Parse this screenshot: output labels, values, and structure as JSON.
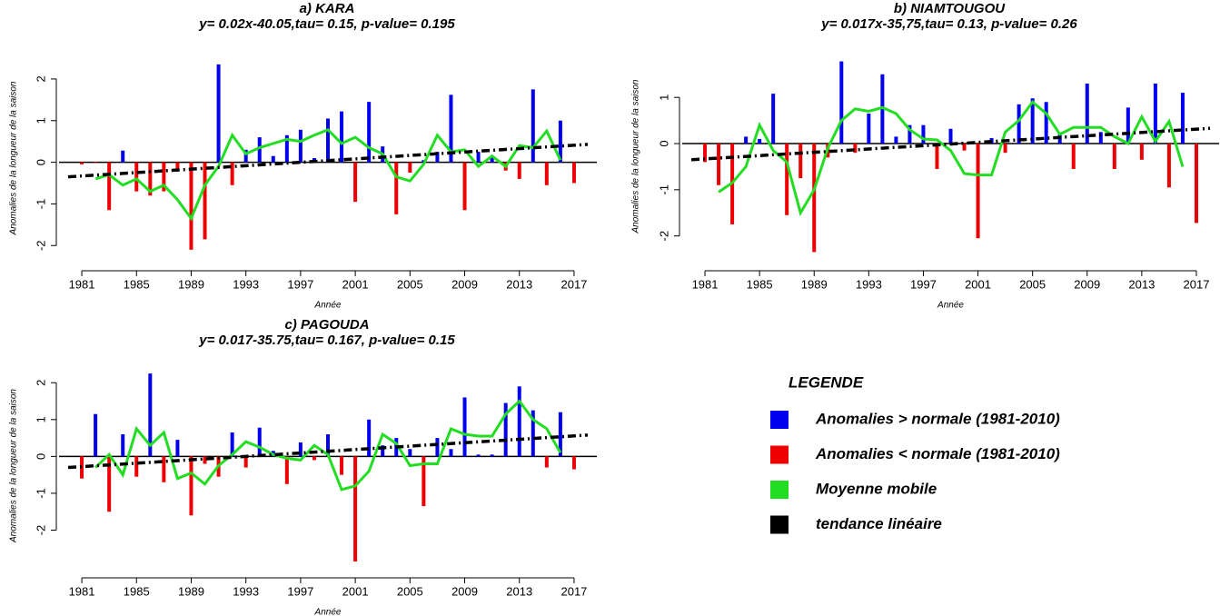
{
  "legend": {
    "title": "LEGENDE",
    "entries": [
      {
        "name": "Anomalies > normale (1981-2010)",
        "color": "#0000ee"
      },
      {
        "name": "Anomalies < normale (1981-2010)",
        "color": "#ee0000"
      },
      {
        "name": "Moyenne mobile",
        "color": "#22dd22"
      },
      {
        "name": "tendance linéaire",
        "color": "#000000"
      }
    ]
  },
  "chart_data": [
    {
      "type": "bar",
      "title": "a) KARA",
      "subtitle": "y= 0.02x-40.05,tau= 0.15, p-value= 0.195",
      "x_label": "Année",
      "y_label": "Anomalies de la longueur de la saison",
      "x": [
        1981,
        1982,
        1983,
        1984,
        1985,
        1986,
        1987,
        1988,
        1989,
        1990,
        1991,
        1992,
        1993,
        1994,
        1995,
        1996,
        1997,
        1998,
        1999,
        2000,
        2001,
        2002,
        2003,
        2004,
        2005,
        2006,
        2007,
        2008,
        2009,
        2010,
        2011,
        2012,
        2013,
        2014,
        2015,
        2016,
        2017
      ],
      "series": [
        {
          "values": [
            null,
            null,
            null,
            0.28,
            null,
            null,
            null,
            null,
            null,
            null,
            2.35,
            null,
            0.3,
            0.6,
            0.15,
            0.65,
            0.78,
            0.1,
            1.05,
            1.22,
            null,
            1.45,
            0.38,
            null,
            null,
            0.05,
            0.25,
            1.62,
            null,
            0.25,
            0.15,
            null,
            null,
            1.75,
            null,
            1.0,
            null
          ]
        },
        {
          "values": [
            -0.05,
            -0.02,
            -1.15,
            null,
            -0.7,
            -0.8,
            -0.7,
            -0.15,
            -2.1,
            -1.85,
            null,
            -0.55,
            null,
            null,
            null,
            null,
            null,
            null,
            null,
            null,
            -0.95,
            null,
            null,
            -1.25,
            -0.25,
            null,
            null,
            null,
            -1.15,
            null,
            null,
            -0.2,
            -0.4,
            null,
            -0.55,
            null,
            -0.5
          ]
        },
        {
          "values": [
            null,
            -0.4,
            -0.3,
            -0.55,
            -0.4,
            -0.7,
            -0.55,
            -0.9,
            -1.35,
            -0.55,
            -0.1,
            0.65,
            0.2,
            0.35,
            0.45,
            0.55,
            0.5,
            0.65,
            0.78,
            0.45,
            0.6,
            0.35,
            0.2,
            -0.35,
            -0.45,
            -0.05,
            0.65,
            0.25,
            0.3,
            -0.1,
            0.15,
            -0.1,
            0.4,
            0.35,
            0.75,
            0.05,
            null
          ]
        }
      ],
      "trend": {
        "x": [
          1980,
          2018
        ],
        "values": [
          -0.35,
          0.43
        ]
      },
      "xlim": [
        1980,
        2018
      ],
      "xticks": [
        1981,
        1985,
        1989,
        1993,
        1997,
        2001,
        2005,
        2009,
        2013,
        2017
      ],
      "ylim": [
        -2.3,
        2.5
      ],
      "yticks": [
        -2,
        -1,
        0,
        1,
        2
      ]
    },
    {
      "type": "bar",
      "title": "b) NIAMTOUGOU",
      "subtitle": "y= 0.017x-35,75,tau= 0.13, p-value= 0.26",
      "x_label": "Année",
      "y_label": "Anomalies de la longueur de la saison",
      "x": [
        1981,
        1982,
        1983,
        1984,
        1985,
        1986,
        1987,
        1988,
        1989,
        1990,
        1991,
        1992,
        1993,
        1994,
        1995,
        1996,
        1997,
        1998,
        1999,
        2000,
        2001,
        2002,
        2003,
        2004,
        2005,
        2006,
        2007,
        2008,
        2009,
        2010,
        2011,
        2012,
        2013,
        2014,
        2015,
        2016,
        2017
      ],
      "series": [
        {
          "values": [
            null,
            null,
            null,
            0.15,
            0.1,
            1.08,
            null,
            null,
            null,
            null,
            1.78,
            null,
            0.65,
            1.5,
            0.15,
            0.4,
            0.4,
            null,
            0.32,
            null,
            null,
            0.12,
            null,
            0.85,
            0.98,
            0.9,
            0.2,
            null,
            1.3,
            0.25,
            null,
            0.78,
            null,
            1.3,
            null,
            1.1,
            null
          ]
        },
        {
          "values": [
            -0.4,
            -0.9,
            -1.75,
            null,
            null,
            null,
            -1.55,
            -0.75,
            -2.35,
            -0.3,
            null,
            -0.2,
            null,
            null,
            null,
            null,
            null,
            -0.55,
            null,
            -0.15,
            -2.05,
            null,
            -0.2,
            null,
            null,
            null,
            null,
            -0.55,
            null,
            null,
            -0.55,
            null,
            -0.35,
            null,
            -0.95,
            null,
            -1.72
          ]
        },
        {
          "values": [
            null,
            -1.05,
            -0.85,
            -0.5,
            0.4,
            -0.15,
            -0.4,
            -1.5,
            -1.0,
            -0.1,
            0.5,
            0.75,
            0.7,
            0.78,
            0.65,
            0.3,
            0.1,
            0.08,
            -0.15,
            -0.65,
            -0.68,
            -0.68,
            0.25,
            0.5,
            0.9,
            0.65,
            0.2,
            0.35,
            0.35,
            0.35,
            0.15,
            0.0,
            0.58,
            0.05,
            0.48,
            -0.5,
            null
          ]
        }
      ],
      "trend": {
        "x": [
          1980,
          2018
        ],
        "values": [
          -0.35,
          0.33
        ]
      },
      "xlim": [
        1980,
        2018
      ],
      "xticks": [
        1981,
        1985,
        1989,
        1993,
        1997,
        2001,
        2005,
        2009,
        2013,
        2017
      ],
      "ylim": [
        -2.4,
        1.85
      ],
      "yticks": [
        -2,
        -1,
        0,
        1
      ]
    },
    {
      "type": "bar",
      "title": "c) PAGOUDA",
      "subtitle": "y= 0.017-35.75,tau= 0.167, p-value= 0.15",
      "x_label": "Année",
      "y_label": "Anomalies de la longueur de la saison",
      "x": [
        1981,
        1982,
        1983,
        1984,
        1985,
        1986,
        1987,
        1988,
        1989,
        1990,
        1991,
        1992,
        1993,
        1994,
        1995,
        1996,
        1997,
        1998,
        1999,
        2000,
        2001,
        2002,
        2003,
        2004,
        2005,
        2006,
        2007,
        2008,
        2009,
        2010,
        2011,
        2012,
        2013,
        2014,
        2015,
        2016,
        2017
      ],
      "series": [
        {
          "values": [
            null,
            1.15,
            null,
            0.6,
            null,
            2.25,
            null,
            0.45,
            null,
            null,
            null,
            0.65,
            null,
            0.78,
            0.15,
            null,
            0.38,
            null,
            0.6,
            null,
            null,
            1.0,
            0.3,
            0.5,
            0.2,
            null,
            0.5,
            0.2,
            1.6,
            0.05,
            0.05,
            1.45,
            1.9,
            1.25,
            null,
            1.2,
            null
          ]
        },
        {
          "values": [
            -0.6,
            null,
            -1.5,
            null,
            -0.55,
            null,
            -0.7,
            null,
            -1.6,
            -0.2,
            -0.55,
            null,
            -0.3,
            null,
            null,
            -0.75,
            null,
            -0.1,
            null,
            -0.5,
            -2.85,
            null,
            null,
            null,
            null,
            -1.35,
            null,
            null,
            null,
            null,
            null,
            null,
            null,
            null,
            -0.3,
            null,
            -0.35
          ]
        },
        {
          "values": [
            null,
            -0.3,
            0.05,
            -0.5,
            0.75,
            0.3,
            0.65,
            -0.6,
            -0.45,
            -0.75,
            -0.25,
            0.05,
            0.4,
            0.25,
            0.05,
            -0.05,
            -0.1,
            0.3,
            0.05,
            -0.9,
            -0.8,
            -0.4,
            0.6,
            0.35,
            -0.25,
            -0.2,
            -0.2,
            0.75,
            0.6,
            0.55,
            0.55,
            1.15,
            1.5,
            1.0,
            0.75,
            0.1,
            null
          ]
        }
      ],
      "trend": {
        "x": [
          1980,
          2018
        ],
        "values": [
          -0.3,
          0.58
        ]
      },
      "xlim": [
        1980,
        2018
      ],
      "xticks": [
        1981,
        1985,
        1989,
        1993,
        1997,
        2001,
        2005,
        2009,
        2013,
        2017
      ],
      "ylim": [
        -2.9,
        2.4
      ],
      "yticks": [
        -2,
        -1,
        0,
        1,
        2
      ]
    }
  ]
}
